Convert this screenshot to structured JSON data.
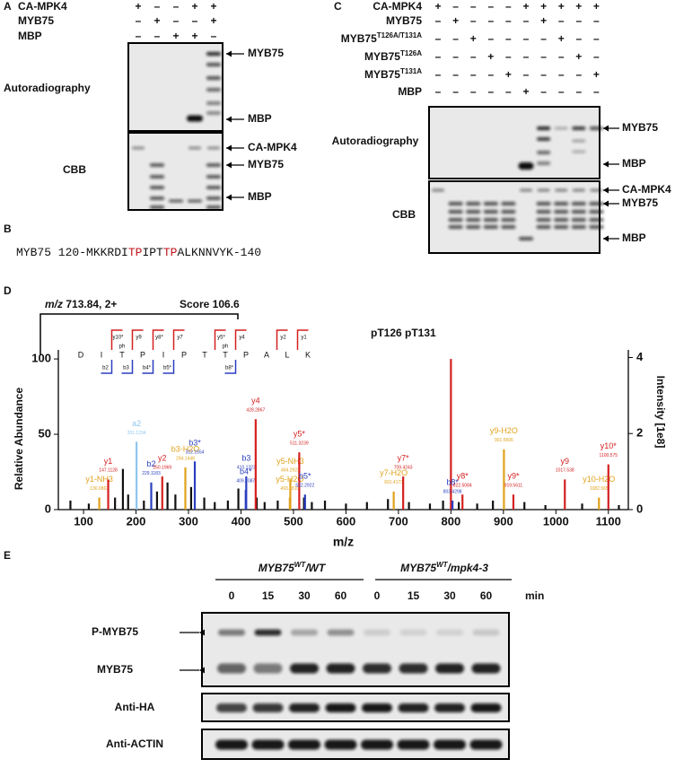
{
  "panel_a": {
    "letter": "A",
    "rows": [
      {
        "label": "CA-MPK4",
        "signs": [
          "+",
          "–",
          "–",
          "+",
          "+"
        ]
      },
      {
        "label": "MYB75",
        "signs": [
          "–",
          "+",
          "–",
          "–",
          "+"
        ]
      },
      {
        "label": "MBP",
        "signs": [
          "–",
          "–",
          "+",
          "+",
          "–"
        ]
      }
    ],
    "autoradiography": "Autoradiography",
    "cbb": "CBB",
    "autorad_markers": [
      "MYB75",
      "MBP"
    ],
    "cbb_markers": [
      "CA-MPK4",
      "MYB75",
      "MBP"
    ]
  },
  "panel_b": {
    "letter": "B",
    "segments": [
      "MYB75 120-MKKRDI",
      "TP",
      "IPT",
      "TP",
      "ALKNNVYK-140"
    ]
  },
  "panel_c": {
    "letter": "C",
    "rows": [
      {
        "name": "CA-MPK4",
        "signs": [
          "+",
          "–",
          "–",
          "–",
          "–",
          "+",
          "+",
          "+",
          "+",
          "+"
        ]
      },
      {
        "name": "MYB75",
        "signs": [
          "–",
          "+",
          "–",
          "–",
          "–",
          "–",
          "+",
          "–",
          "–",
          "–"
        ]
      },
      {
        "name": "MYB75",
        "sup": "T126A/T131A",
        "signs": [
          "–",
          "–",
          "+",
          "–",
          "–",
          "–",
          "–",
          "+",
          "–",
          "–"
        ]
      },
      {
        "name": "MYB75",
        "sup": "T126A",
        "signs": [
          "–",
          "–",
          "–",
          "+",
          "–",
          "–",
          "–",
          "–",
          "+",
          "–"
        ]
      },
      {
        "name": "MYB75",
        "sup": "T131A",
        "signs": [
          "–",
          "–",
          "–",
          "–",
          "+",
          "–",
          "–",
          "–",
          "–",
          "+"
        ]
      },
      {
        "name": "MBP",
        "signs": [
          "–",
          "–",
          "–",
          "–",
          "–",
          "+",
          "–",
          "–",
          "–",
          "–"
        ]
      }
    ],
    "autoradiography": "Autoradiography",
    "cbb": "CBB",
    "autorad_markers": [
      "MYB75",
      "MBP"
    ],
    "cbb_markers": [
      "CA-MPK4",
      "MYB75",
      "MBP"
    ]
  },
  "panel_d": {
    "letter": "D",
    "precursor_mz": "m/z",
    "precursor": " 713.84, 2+",
    "score": "Score 106.6",
    "sites": "pT126  pT131",
    "sequence": [
      "D",
      "I",
      "T",
      "P",
      "I",
      "P",
      "T",
      "T",
      "P",
      "A",
      "L",
      "K"
    ],
    "y_ions": [
      "y10*",
      "y9",
      "y8*",
      "y7",
      "y5*",
      "y4",
      "y2",
      "y1"
    ],
    "b_ions": [
      "b2",
      "b3",
      "b4*",
      "b5*",
      "b8*"
    ],
    "ph": [
      "ph",
      "ph"
    ],
    "spectrum": {
      "type": "bar",
      "xlabel": "m/z",
      "ylabel": "Relative Abundance",
      "y2label": "Intensity [1e8]",
      "xlim": [
        52,
        1138
      ],
      "xticks": [
        100,
        200,
        300,
        400,
        500,
        600,
        700,
        800,
        900,
        1000,
        1100
      ],
      "ylim": [
        0,
        106
      ],
      "yticks": [
        0,
        50,
        100
      ],
      "y2lim": [
        0,
        4.2
      ],
      "y2ticks": [
        0,
        2,
        4
      ],
      "peaks": [
        {
          "ion": "y1-NH3",
          "mz": "130.0863",
          "x": 130,
          "value": 8,
          "color": "#e0a21a"
        },
        {
          "ion": "y1",
          "mz": "147.1128",
          "x": 147,
          "value": 20,
          "color": "#d42020"
        },
        {
          "ion": "a2",
          "mz": "201.1234",
          "x": 201,
          "value": 45,
          "color": "#8ec6ee"
        },
        {
          "ion": "b2",
          "mz": "229.1183",
          "x": 229,
          "value": 18,
          "color": "#2a3fbf"
        },
        {
          "ion": "y2",
          "mz": "250.1969",
          "x": 250,
          "value": 22,
          "color": "#d42020"
        },
        {
          "ion": "b3-H2O",
          "mz": "294.1448",
          "x": 294,
          "value": 28,
          "color": "#e0a21a"
        },
        {
          "ion": "b3*",
          "mz": "312.1554",
          "x": 312,
          "value": 32,
          "color": "#2a3fbf"
        },
        {
          "ion": "b4*",
          "mz": "409.2087",
          "x": 409,
          "value": 13,
          "color": "#2a3fbf"
        },
        {
          "ion": "b3",
          "mz": "410.1323",
          "x": 410,
          "value": 22,
          "color": "#2a3fbf"
        },
        {
          "ion": "y4",
          "mz": "428.2867",
          "x": 428,
          "value": 60,
          "color": "#d42020"
        },
        {
          "ion": "y5-H2O",
          "mz": "493.2810",
          "x": 493,
          "value": 8,
          "color": "#e0a21a"
        },
        {
          "ion": "y5-NH3",
          "mz": "494.2923",
          "x": 494,
          "value": 20,
          "color": "#e0a21a"
        },
        {
          "ion": "y5*",
          "mz": "511.3239",
          "x": 511,
          "value": 38,
          "color": "#d42020"
        },
        {
          "ion": "b5*",
          "mz": "522.2922",
          "x": 522,
          "value": 10,
          "color": "#2a3fbf"
        },
        {
          "ion": "y7-H2O",
          "mz": "691.4173",
          "x": 691,
          "value": 12,
          "color": "#e0a21a"
        },
        {
          "ion": "y7*",
          "mz": "709.4243",
          "x": 709,
          "value": 22,
          "color": "#d42020"
        },
        {
          "ion": "b8*",
          "mz": "803.4298",
          "x": 803,
          "value": 6,
          "color": "#2a3fbf"
        },
        {
          "ion": "y8*",
          "mz": "822.5084",
          "x": 822,
          "value": 10,
          "color": "#d42020"
        },
        {
          "ion": "y9-H2O",
          "mz": "901.5506",
          "x": 901,
          "value": 40,
          "color": "#e0a21a"
        },
        {
          "ion": "y9*",
          "mz": "919.5611",
          "x": 919,
          "value": 10,
          "color": "#d42020"
        },
        {
          "ion": "y9",
          "mz": "1017.538",
          "x": 1017,
          "value": 20,
          "color": "#d42020"
        },
        {
          "ion": "y10-H2O",
          "mz": "1082.565",
          "x": 1082,
          "value": 8,
          "color": "#e0a21a"
        },
        {
          "ion": "y10*",
          "mz": "1100.575",
          "x": 1100,
          "value": 30,
          "color": "#d42020"
        }
      ],
      "unlabeled_peaks": {
        "x": [
          75,
          110,
          160,
          175,
          185,
          215,
          240,
          260,
          275,
          305,
          330,
          350,
          375,
          395,
          430,
          445,
          470,
          520,
          535,
          560,
          600,
          640,
          680,
          720,
          760,
          785,
          800,
          815,
          850,
          880,
          940,
          980,
          1050,
          1120
        ],
        "values": [
          6,
          4,
          8,
          27,
          10,
          6,
          12,
          18,
          10,
          15,
          8,
          5,
          6,
          14,
          8,
          5,
          6,
          8,
          5,
          6,
          4,
          5,
          7,
          5,
          4,
          6,
          100,
          5,
          4,
          6,
          5,
          3,
          4,
          3
        ],
        "color": "#111111",
        "major_color": "#d42020"
      }
    }
  },
  "panel_e": {
    "letter": "E",
    "group1": {
      "gene": "MYB75",
      "sup": "WT",
      "rest": "/WT"
    },
    "group2": {
      "gene": "MYB75",
      "sup": "WT",
      "rest": "/mpk4-3"
    },
    "times": [
      "0",
      "15",
      "30",
      "60",
      "0",
      "15",
      "30",
      "60"
    ],
    "unit": "min",
    "rows": [
      "P-MYB75",
      "MYB75",
      "Anti-HA",
      "Anti-ACTIN"
    ]
  }
}
